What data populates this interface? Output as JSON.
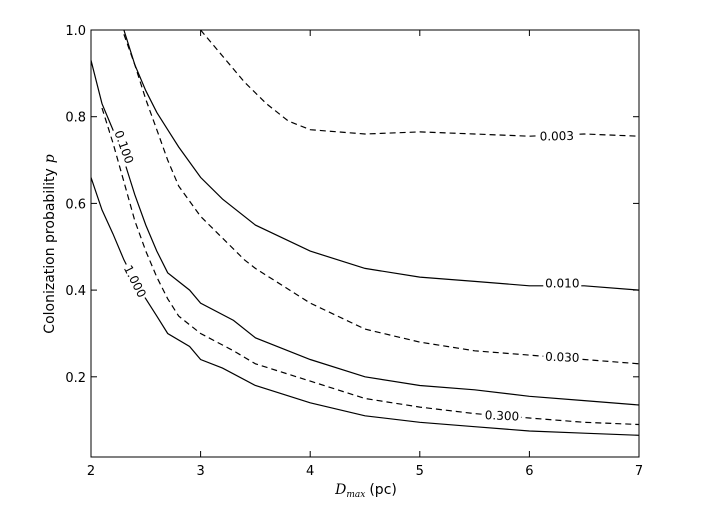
{
  "chart_data": {
    "type": "line",
    "title": "",
    "xlabel_symbol": "D",
    "xlabel_subscript": "max",
    "xlabel_unit": "(pc)",
    "ylabel_text": "Colonization probability",
    "ylabel_symbol": "p",
    "xlim": [
      2,
      7
    ],
    "ylim": [
      0.015,
      1.0
    ],
    "x_ticks": [
      2,
      3,
      4,
      5,
      6,
      7
    ],
    "y_ticks": [
      0.2,
      0.4,
      0.6,
      0.8,
      1.0
    ],
    "x_tick_labels": [
      "2",
      "3",
      "4",
      "5",
      "6",
      "7"
    ],
    "y_tick_labels": [
      "0.2",
      "0.4",
      "0.6",
      "0.8",
      "1.0"
    ],
    "grid": false,
    "line_color": "#000000",
    "series": [
      {
        "level": "1.000",
        "style": "solid",
        "label_text": "1.000",
        "label_at": {
          "x": 2.4,
          "y": 0.42
        },
        "points": [
          [
            2.0,
            0.66
          ],
          [
            2.1,
            0.585
          ],
          [
            2.2,
            0.53
          ],
          [
            2.3,
            0.47
          ],
          [
            2.4,
            0.42
          ],
          [
            2.5,
            0.38
          ],
          [
            2.6,
            0.34
          ],
          [
            2.7,
            0.3
          ],
          [
            2.9,
            0.27
          ],
          [
            3.0,
            0.24
          ],
          [
            3.2,
            0.22
          ],
          [
            3.5,
            0.18
          ],
          [
            4.0,
            0.14
          ],
          [
            4.5,
            0.11
          ],
          [
            5.0,
            0.095
          ],
          [
            5.5,
            0.085
          ],
          [
            6.0,
            0.075
          ],
          [
            6.5,
            0.07
          ],
          [
            7.0,
            0.065
          ]
        ]
      },
      {
        "level": "0.300",
        "style": "dashed",
        "label_text": "0.300",
        "label_at": {
          "x": 5.75,
          "y": 0.11
        },
        "points": [
          [
            2.1,
            0.82
          ],
          [
            2.2,
            0.74
          ],
          [
            2.3,
            0.65
          ],
          [
            2.4,
            0.56
          ],
          [
            2.5,
            0.49
          ],
          [
            2.6,
            0.43
          ],
          [
            2.7,
            0.38
          ],
          [
            2.8,
            0.34
          ],
          [
            3.0,
            0.3
          ],
          [
            3.3,
            0.26
          ],
          [
            3.5,
            0.23
          ],
          [
            4.0,
            0.19
          ],
          [
            4.5,
            0.15
          ],
          [
            5.0,
            0.13
          ],
          [
            5.5,
            0.115
          ],
          [
            6.0,
            0.105
          ],
          [
            6.5,
            0.095
          ],
          [
            7.0,
            0.09
          ]
        ]
      },
      {
        "level": "0.100",
        "style": "solid",
        "label_text": "0.100",
        "label_at": {
          "x": 2.3,
          "y": 0.73
        },
        "points": [
          [
            2.0,
            0.93
          ],
          [
            2.1,
            0.83
          ],
          [
            2.2,
            0.77
          ],
          [
            2.3,
            0.7
          ],
          [
            2.4,
            0.62
          ],
          [
            2.5,
            0.55
          ],
          [
            2.6,
            0.49
          ],
          [
            2.7,
            0.44
          ],
          [
            2.9,
            0.4
          ],
          [
            3.0,
            0.37
          ],
          [
            3.3,
            0.33
          ],
          [
            3.5,
            0.29
          ],
          [
            4.0,
            0.24
          ],
          [
            4.5,
            0.2
          ],
          [
            5.0,
            0.18
          ],
          [
            5.5,
            0.17
          ],
          [
            6.0,
            0.155
          ],
          [
            6.5,
            0.145
          ],
          [
            7.0,
            0.135
          ]
        ]
      },
      {
        "level": "0.030",
        "style": "dashed",
        "label_text": "0.030",
        "label_at": {
          "x": 6.3,
          "y": 0.245
        },
        "points": [
          [
            2.3,
            0.99
          ],
          [
            2.4,
            0.92
          ],
          [
            2.5,
            0.84
          ],
          [
            2.6,
            0.77
          ],
          [
            2.7,
            0.7
          ],
          [
            2.8,
            0.64
          ],
          [
            3.0,
            0.57
          ],
          [
            3.2,
            0.52
          ],
          [
            3.4,
            0.47
          ],
          [
            3.5,
            0.45
          ],
          [
            4.0,
            0.37
          ],
          [
            4.5,
            0.31
          ],
          [
            5.0,
            0.28
          ],
          [
            5.5,
            0.26
          ],
          [
            6.0,
            0.25
          ],
          [
            6.5,
            0.24
          ],
          [
            7.0,
            0.23
          ]
        ]
      },
      {
        "level": "0.010",
        "style": "solid",
        "label_text": "0.010",
        "label_at": {
          "x": 6.3,
          "y": 0.415
        },
        "points": [
          [
            2.3,
            1.0
          ],
          [
            2.4,
            0.92
          ],
          [
            2.5,
            0.86
          ],
          [
            2.6,
            0.81
          ],
          [
            2.7,
            0.77
          ],
          [
            2.8,
            0.73
          ],
          [
            3.0,
            0.66
          ],
          [
            3.2,
            0.61
          ],
          [
            3.5,
            0.55
          ],
          [
            4.0,
            0.49
          ],
          [
            4.5,
            0.45
          ],
          [
            5.0,
            0.43
          ],
          [
            5.5,
            0.42
          ],
          [
            6.0,
            0.41
          ],
          [
            6.5,
            0.41
          ],
          [
            7.0,
            0.4
          ]
        ]
      },
      {
        "level": "0.003",
        "style": "dashed",
        "label_text": "0.003",
        "label_at": {
          "x": 6.25,
          "y": 0.755
        },
        "points": [
          [
            3.0,
            1.0
          ],
          [
            3.2,
            0.94
          ],
          [
            3.4,
            0.88
          ],
          [
            3.6,
            0.83
          ],
          [
            3.8,
            0.79
          ],
          [
            4.0,
            0.77
          ],
          [
            4.5,
            0.76
          ],
          [
            5.0,
            0.765
          ],
          [
            5.5,
            0.76
          ],
          [
            6.0,
            0.755
          ],
          [
            6.5,
            0.76
          ],
          [
            7.0,
            0.755
          ]
        ]
      }
    ]
  }
}
